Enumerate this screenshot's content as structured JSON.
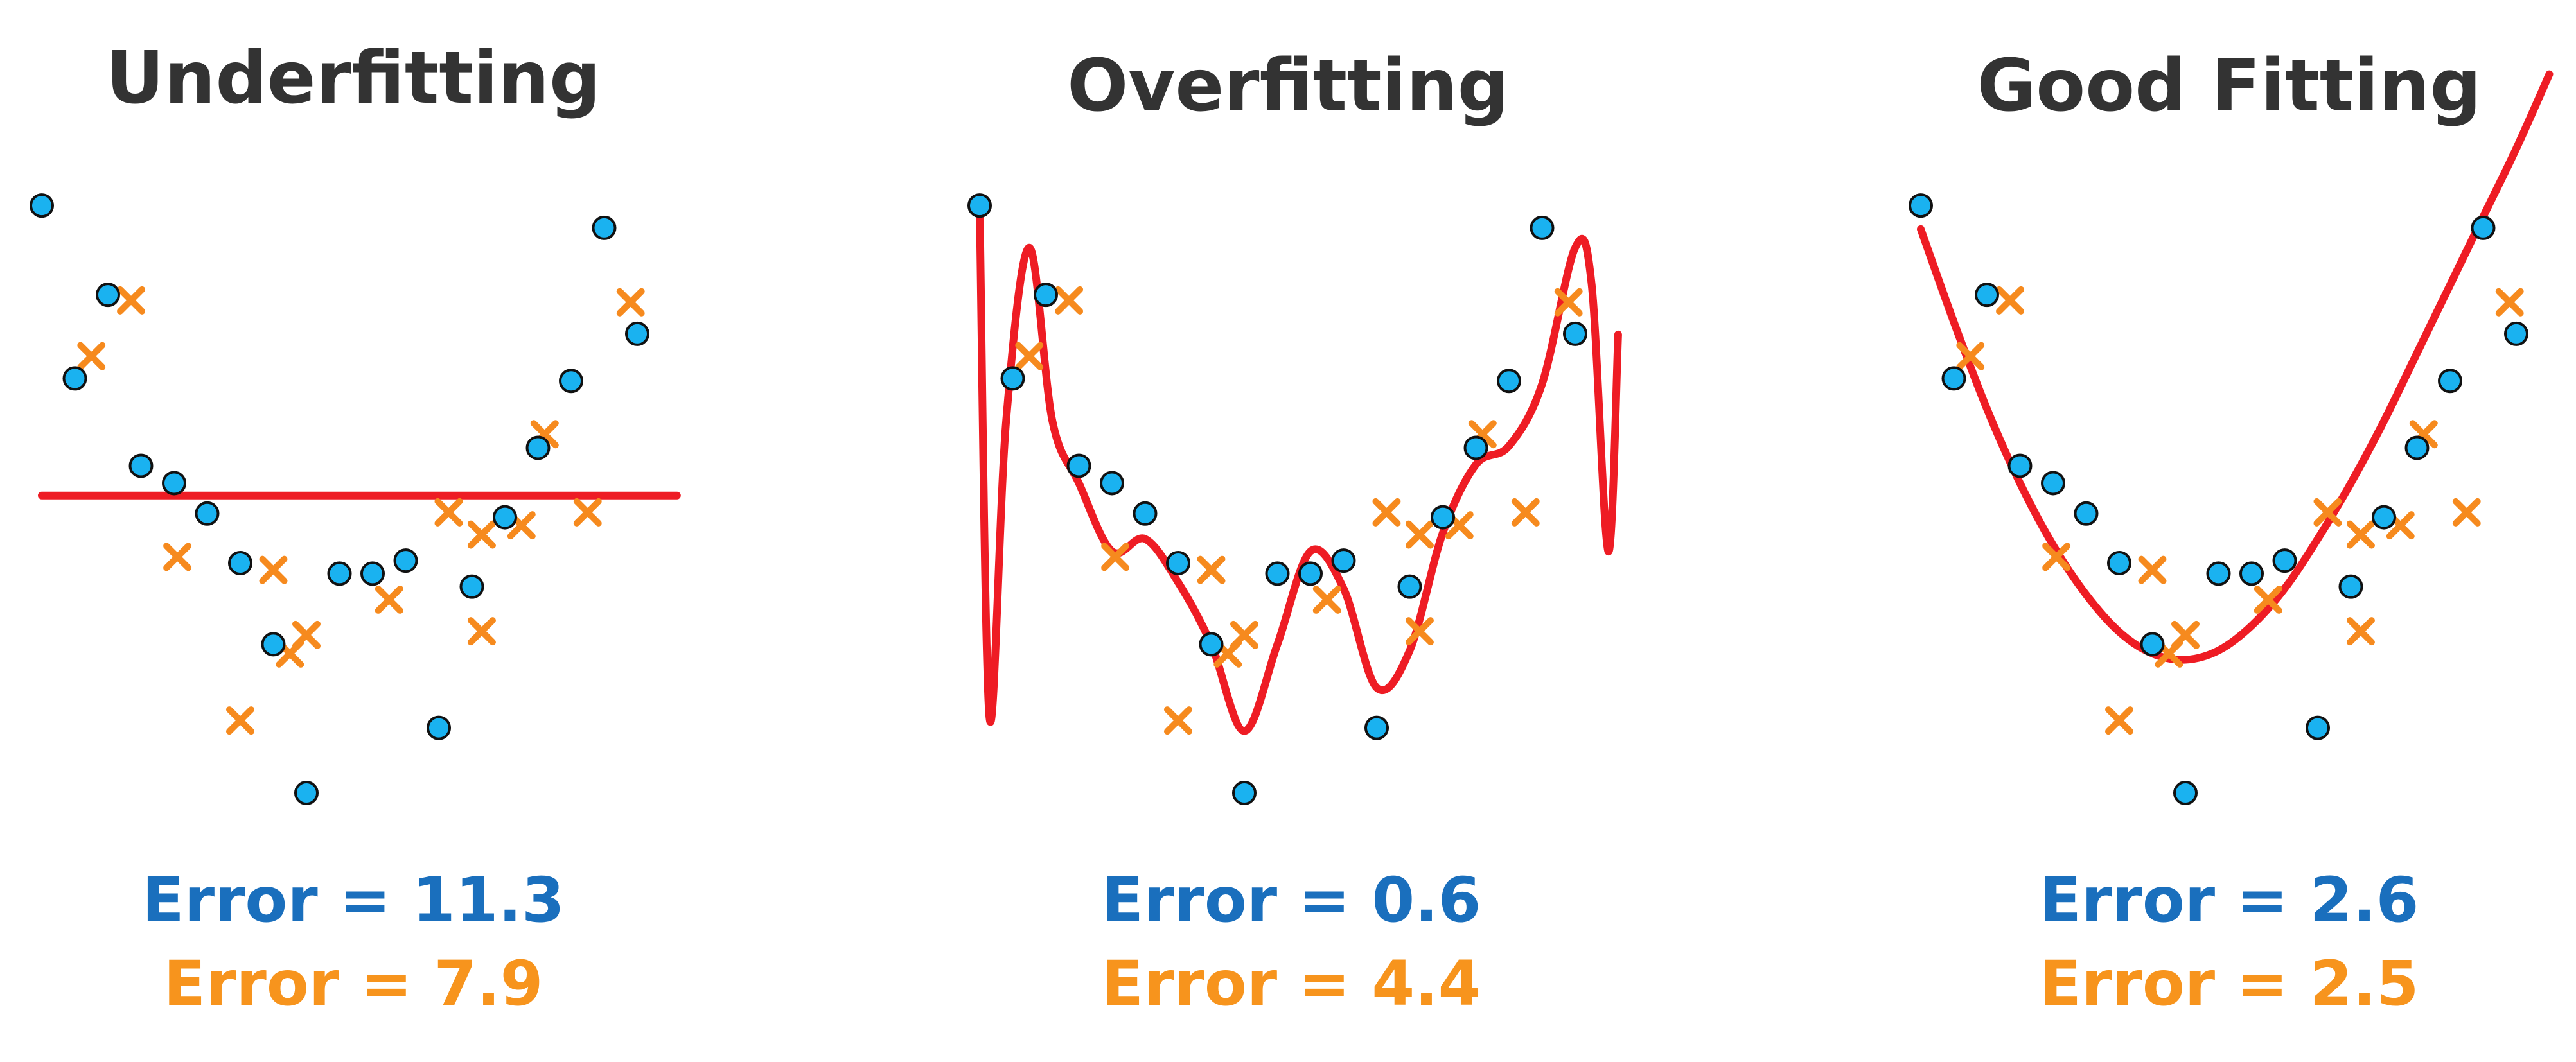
{
  "colors": {
    "train": "#1ab2f0",
    "test": "#f68a1e",
    "fit": "#ee1c24",
    "train_error_text": "#1a6fbd",
    "test_error_text": "#f7941d",
    "title": "#333333"
  },
  "chart_data": [
    {
      "type": "scatter",
      "title": "Underfitting",
      "xlim": [
        0,
        20
      ],
      "ylim": [
        0,
        10
      ],
      "train_error_label": "Error = 11.3",
      "test_error_label": "Error = 7.9",
      "train": [
        [
          0,
          9.48
        ],
        [
          1,
          6.69
        ],
        [
          2,
          8.04
        ],
        [
          3,
          5.28
        ],
        [
          4,
          5.0
        ],
        [
          5,
          4.51
        ],
        [
          6,
          3.71
        ],
        [
          7,
          2.4
        ],
        [
          8,
          0.0
        ],
        [
          9,
          3.54
        ],
        [
          10,
          3.54
        ],
        [
          11,
          3.75
        ],
        [
          12,
          1.05
        ],
        [
          13,
          3.33
        ],
        [
          14,
          4.45
        ],
        [
          15,
          5.57
        ],
        [
          16,
          6.65
        ],
        [
          17,
          9.12
        ],
        [
          18,
          7.41
        ]
      ],
      "test": [
        [
          1.5,
          7.05
        ],
        [
          2.7,
          7.95
        ],
        [
          4.1,
          3.81
        ],
        [
          6.0,
          1.17
        ],
        [
          7.0,
          3.6
        ],
        [
          7.5,
          2.25
        ],
        [
          8.0,
          2.55
        ],
        [
          10.5,
          3.12
        ],
        [
          12.3,
          4.53
        ],
        [
          13.3,
          4.17
        ],
        [
          13.3,
          2.61
        ],
        [
          14.5,
          4.32
        ],
        [
          15.2,
          5.79
        ],
        [
          16.5,
          4.53
        ],
        [
          17.8,
          7.92
        ]
      ],
      "fit": {
        "kind": "line",
        "points": [
          [
            0,
            4.8
          ],
          [
            19.2,
            4.8
          ]
        ]
      }
    },
    {
      "type": "scatter",
      "title": "Overfitting",
      "xlim": [
        0,
        20
      ],
      "ylim": [
        0,
        10
      ],
      "train_error_label": "Error = 0.6",
      "test_error_label": "Error = 4.4",
      "train": [
        [
          0,
          9.48
        ],
        [
          1,
          6.69
        ],
        [
          2,
          8.04
        ],
        [
          3,
          5.28
        ],
        [
          4,
          5.0
        ],
        [
          5,
          4.51
        ],
        [
          6,
          3.71
        ],
        [
          7,
          2.4
        ],
        [
          8,
          0.0
        ],
        [
          9,
          3.54
        ],
        [
          10,
          3.54
        ],
        [
          11,
          3.75
        ],
        [
          12,
          1.05
        ],
        [
          13,
          3.33
        ],
        [
          14,
          4.45
        ],
        [
          15,
          5.57
        ],
        [
          16,
          6.65
        ],
        [
          17,
          9.12
        ],
        [
          18,
          7.41
        ]
      ],
      "test": [
        [
          1.5,
          7.05
        ],
        [
          2.7,
          7.95
        ],
        [
          4.1,
          3.81
        ],
        [
          6.0,
          1.17
        ],
        [
          7.0,
          3.6
        ],
        [
          7.5,
          2.25
        ],
        [
          8.0,
          2.55
        ],
        [
          10.5,
          3.12
        ],
        [
          12.3,
          4.53
        ],
        [
          13.3,
          4.17
        ],
        [
          13.3,
          2.61
        ],
        [
          14.5,
          4.32
        ],
        [
          15.2,
          5.79
        ],
        [
          16.5,
          4.53
        ],
        [
          17.8,
          7.92
        ]
      ],
      "fit": {
        "kind": "curve",
        "points": [
          [
            0,
            9.48
          ],
          [
            0.3,
            1.2
          ],
          [
            0.8,
            6.0
          ],
          [
            1.5,
            8.8
          ],
          [
            2.2,
            6.0
          ],
          [
            3.0,
            5.0
          ],
          [
            4.0,
            3.9
          ],
          [
            5.0,
            4.1
          ],
          [
            6.0,
            3.4
          ],
          [
            7.0,
            2.4
          ],
          [
            8.0,
            1.0
          ],
          [
            9.0,
            2.4
          ],
          [
            10.0,
            3.9
          ],
          [
            11.0,
            3.3
          ],
          [
            12.0,
            1.7
          ],
          [
            13.0,
            2.3
          ],
          [
            14.0,
            4.2
          ],
          [
            15.0,
            5.3
          ],
          [
            16.0,
            5.6
          ],
          [
            17.0,
            6.6
          ],
          [
            18.0,
            8.8
          ],
          [
            18.5,
            8.2
          ],
          [
            19.0,
            3.9
          ],
          [
            19.3,
            7.4
          ]
        ]
      }
    },
    {
      "type": "scatter",
      "title": "Good Fitting",
      "xlim": [
        0,
        20
      ],
      "ylim": [
        0,
        10
      ],
      "train_error_label": "Error = 2.6",
      "test_error_label": "Error = 2.5",
      "train": [
        [
          0,
          9.48
        ],
        [
          1,
          6.69
        ],
        [
          2,
          8.04
        ],
        [
          3,
          5.28
        ],
        [
          4,
          5.0
        ],
        [
          5,
          4.51
        ],
        [
          6,
          3.71
        ],
        [
          7,
          2.4
        ],
        [
          8,
          0.0
        ],
        [
          9,
          3.54
        ],
        [
          10,
          3.54
        ],
        [
          11,
          3.75
        ],
        [
          12,
          1.05
        ],
        [
          13,
          3.33
        ],
        [
          14,
          4.45
        ],
        [
          15,
          5.57
        ],
        [
          16,
          6.65
        ],
        [
          17,
          9.12
        ],
        [
          18,
          7.41
        ]
      ],
      "test": [
        [
          1.5,
          7.05
        ],
        [
          2.7,
          7.95
        ],
        [
          4.1,
          3.81
        ],
        [
          6.0,
          1.17
        ],
        [
          7.0,
          3.6
        ],
        [
          7.5,
          2.25
        ],
        [
          8.0,
          2.55
        ],
        [
          10.5,
          3.12
        ],
        [
          12.3,
          4.53
        ],
        [
          13.3,
          4.17
        ],
        [
          13.3,
          2.61
        ],
        [
          14.5,
          4.32
        ],
        [
          15.2,
          5.79
        ],
        [
          16.5,
          4.53
        ],
        [
          17.8,
          7.92
        ]
      ],
      "fit": {
        "kind": "curve",
        "points": [
          [
            0,
            9.1
          ],
          [
            1,
            7.6
          ],
          [
            2,
            6.2
          ],
          [
            3,
            5.0
          ],
          [
            4,
            4.0
          ],
          [
            5,
            3.2
          ],
          [
            6,
            2.6
          ],
          [
            7,
            2.25
          ],
          [
            8,
            2.15
          ],
          [
            9,
            2.3
          ],
          [
            10,
            2.7
          ],
          [
            11,
            3.3
          ],
          [
            12,
            4.1
          ],
          [
            13,
            5.0
          ],
          [
            14,
            6.0
          ],
          [
            15,
            7.1
          ],
          [
            16,
            8.2
          ],
          [
            17,
            9.3
          ],
          [
            18,
            10.4
          ],
          [
            19,
            11.6
          ]
        ]
      }
    }
  ]
}
